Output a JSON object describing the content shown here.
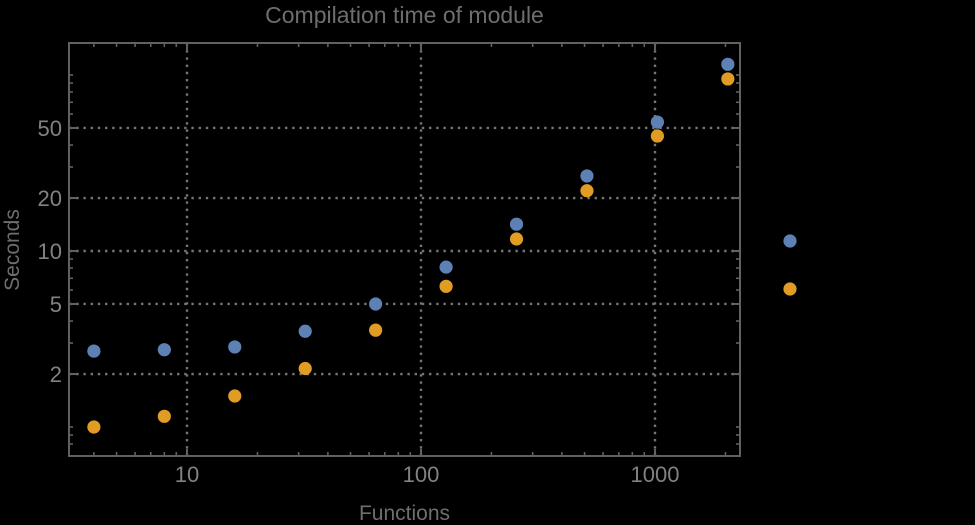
{
  "chart_data": {
    "type": "scatter",
    "title": "Compilation time of module",
    "xlabel": "Functions",
    "ylabel": "Seconds",
    "x_scale": "log",
    "y_scale": "log",
    "grid": "dotted",
    "xlim": [
      3.1,
      2310
    ],
    "ylim": [
      0.68,
      152
    ],
    "x": [
      4,
      8,
      16,
      32,
      64,
      128,
      256,
      512,
      1024,
      2048
    ],
    "series": [
      {
        "name": "blue",
        "color": "#5E81B5",
        "values": [
          2.7,
          2.75,
          2.85,
          3.5,
          5.0,
          8.1,
          14.2,
          26.7,
          54,
          115
        ]
      },
      {
        "name": "orange",
        "color": "#E19C24",
        "values": [
          1.0,
          1.15,
          1.5,
          2.15,
          3.55,
          6.3,
          11.7,
          22,
          45,
          95
        ]
      }
    ],
    "x_tick_labels": [
      10,
      100,
      1000
    ],
    "y_tick_labels": [
      2,
      5,
      10,
      20,
      50
    ],
    "x_minor_ticks": [
      4,
      5,
      6,
      7,
      8,
      9,
      20,
      30,
      40,
      50,
      60,
      70,
      80,
      90,
      200,
      300,
      400,
      500,
      600,
      700,
      800,
      900,
      2000
    ],
    "y_minor_ticks": [
      0.7,
      0.8,
      0.9,
      1,
      3,
      4,
      6,
      7,
      8,
      9,
      30,
      40,
      60,
      70,
      80,
      90,
      100
    ],
    "legend": {
      "position": "right-outside",
      "markers": [
        {
          "name": "blue",
          "color": "#5E81B5",
          "label": ""
        },
        {
          "name": "orange",
          "color": "#E19C24",
          "label": ""
        }
      ]
    },
    "colors": {
      "background": "#000000",
      "grid": "#757575",
      "frame": "#616161",
      "tick_label": "#828282",
      "title": "#6E6E6E",
      "axis_label": "#6E6E6E"
    }
  }
}
